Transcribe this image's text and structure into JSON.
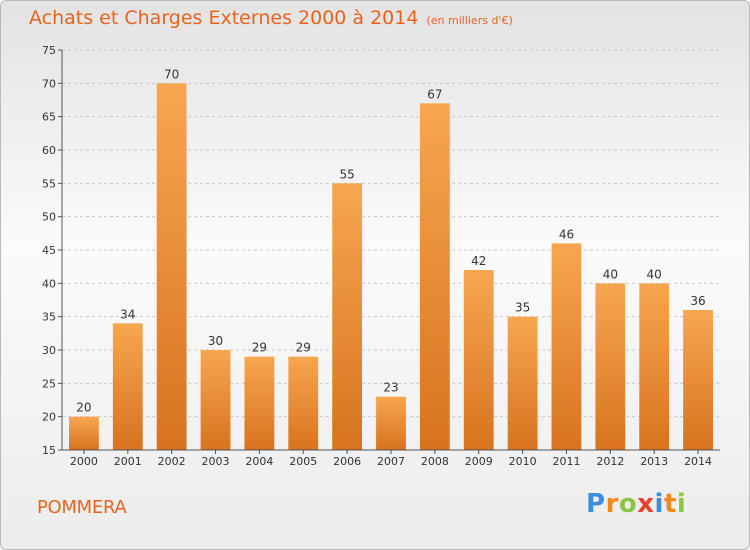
{
  "title": "Achats et Charges Externes 2000 à 2014",
  "unit_note": "(en milliers d'€)",
  "commune": "POMMERA",
  "logo": {
    "letters": [
      "P",
      "r",
      "o",
      "x",
      "i",
      "t",
      "i"
    ],
    "colors": [
      "#3b8ddd",
      "#f08a1c",
      "#8dc63f",
      "#e8402a",
      "#3b8ddd",
      "#f08a1c",
      "#8dc63f"
    ]
  },
  "colors": {
    "accent": "#e8641c",
    "bar_top": "#f7a650",
    "bar_bottom": "#d8731f",
    "grid": "#c8c8c8"
  },
  "chart_data": {
    "type": "bar",
    "categories": [
      "2000",
      "2001",
      "2002",
      "2003",
      "2004",
      "2005",
      "2006",
      "2007",
      "2008",
      "2009",
      "2010",
      "2011",
      "2012",
      "2013",
      "2014"
    ],
    "values": [
      20,
      34,
      70,
      30,
      29,
      29,
      55,
      23,
      67,
      42,
      35,
      46,
      40,
      40,
      36
    ],
    "title": "Achats et Charges Externes 2000 à 2014",
    "ylim": [
      15,
      75
    ],
    "yticks": [
      15,
      20,
      25,
      30,
      35,
      40,
      45,
      50,
      55,
      60,
      65,
      70,
      75
    ],
    "grid": true,
    "data_labels": true
  }
}
